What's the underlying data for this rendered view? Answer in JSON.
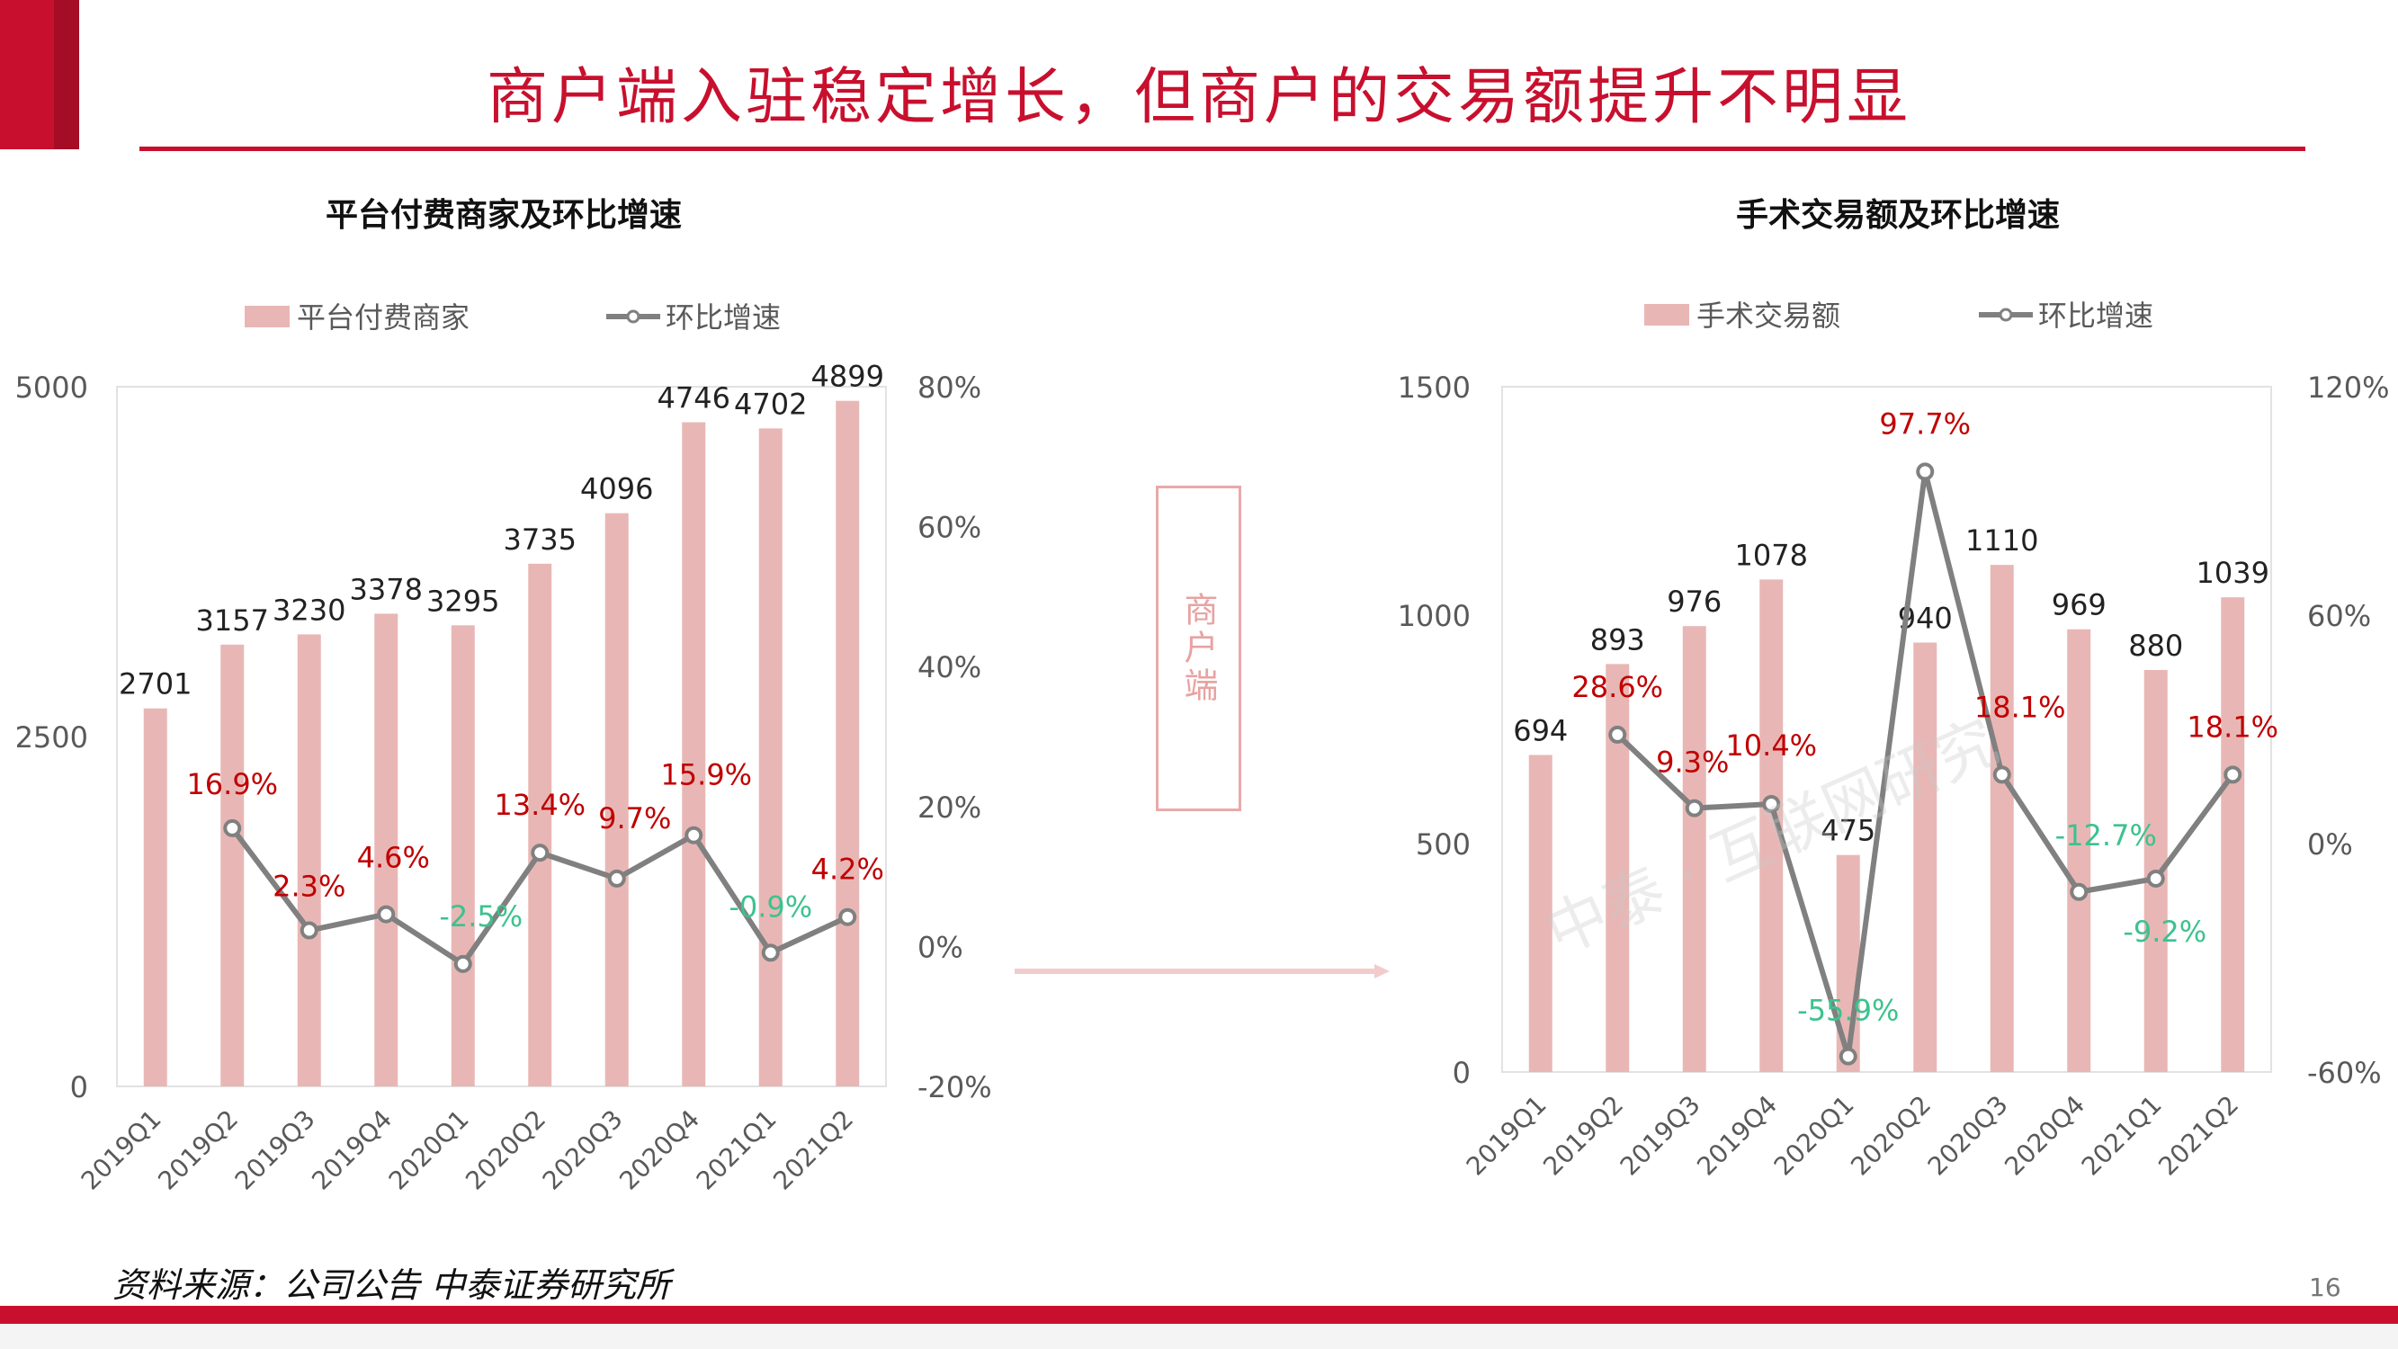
{
  "page": {
    "title": "商户端入驻稳定增长，但商户的交易额提升不明显",
    "center_label": "商户端",
    "watermark": "中泰 · 互联网研究",
    "source": "资料来源：公司公告 中泰证券研究所",
    "page_number": "16"
  },
  "colors": {
    "accent": "#c8102e",
    "bar": "#e8b7b5",
    "line": "#808080",
    "positive": "#c00000",
    "negative": "#3cc28f",
    "arrow": "#f2cccc"
  },
  "chart_data": [
    {
      "type": "bar",
      "title": "平台付费商家及环比增速",
      "categories": [
        "2019Q1",
        "2019Q2",
        "2019Q3",
        "2019Q4",
        "2020Q1",
        "2020Q2",
        "2020Q3",
        "2020Q4",
        "2021Q1",
        "2021Q2"
      ],
      "series": [
        {
          "name": "平台付费商家",
          "type": "bar",
          "axis": "left",
          "values": [
            2701,
            3157,
            3230,
            3378,
            3295,
            3735,
            4096,
            4746,
            4702,
            4899
          ]
        },
        {
          "name": "环比增速",
          "type": "line",
          "axis": "right",
          "values": [
            null,
            16.9,
            2.3,
            4.6,
            -2.5,
            13.4,
            9.7,
            15.9,
            -0.9,
            4.2
          ],
          "labels": [
            "",
            "16.9%",
            "2.3%",
            "4.6%",
            "-2.5%",
            "13.4%",
            "9.7%",
            "15.9%",
            "-0.9%",
            "4.2%"
          ]
        }
      ],
      "ylim_left": [
        0,
        5000
      ],
      "yticks_left": [
        "0",
        "2500",
        "5000"
      ],
      "ylim_right": [
        -20,
        80
      ],
      "yticks_right": [
        "-20%",
        "0%",
        "20%",
        "40%",
        "60%",
        "80%"
      ],
      "legend": "top"
    },
    {
      "type": "bar",
      "title": "手术交易额及环比增速",
      "categories": [
        "2019Q1",
        "2019Q2",
        "2019Q3",
        "2019Q4",
        "2020Q1",
        "2020Q2",
        "2020Q3",
        "2020Q4",
        "2021Q1",
        "2021Q2"
      ],
      "series": [
        {
          "name": "手术交易额",
          "type": "bar",
          "axis": "left",
          "values": [
            694,
            893,
            976,
            1078,
            475,
            940,
            1110,
            969,
            880,
            1039
          ]
        },
        {
          "name": "环比增速",
          "type": "line",
          "axis": "right",
          "values": [
            null,
            28.6,
            9.3,
            10.4,
            -55.9,
            97.7,
            18.1,
            -12.7,
            -9.2,
            18.1
          ],
          "labels": [
            "",
            "28.6%",
            "9.3%",
            "10.4%",
            "-55.9%",
            "97.7%",
            "18.1%",
            "-12.7%",
            "-9.2%",
            "18.1%"
          ]
        }
      ],
      "ylim_left": [
        0,
        1500
      ],
      "yticks_left": [
        "0",
        "500",
        "1000",
        "1500"
      ],
      "ylim_right": [
        -60,
        120
      ],
      "yticks_right": [
        "-60%",
        "0%",
        "60%",
        "120%"
      ],
      "legend": "top"
    }
  ]
}
